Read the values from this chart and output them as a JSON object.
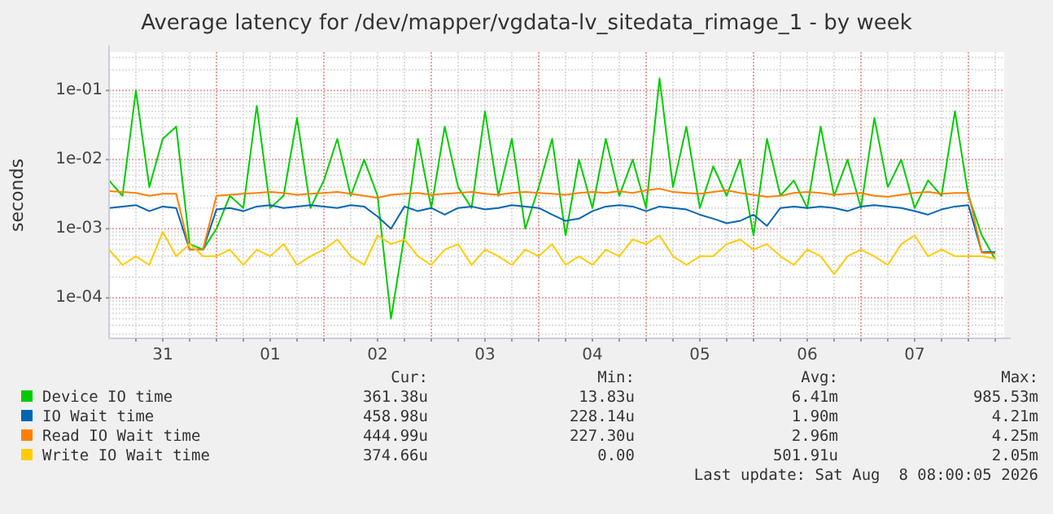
{
  "chart_data": {
    "type": "line",
    "title": "Average latency for /dev/mapper/vgdata-lv_sitedata_rimage_1 - by week",
    "ylabel": "seconds",
    "log": "y",
    "grid": true,
    "legend": "bottom",
    "x": [
      "2026-07-31T00:00",
      "2026-07-31T03:00",
      "2026-07-31T06:00",
      "2026-07-31T09:00",
      "2026-07-31T12:00",
      "2026-07-31T15:00",
      "2026-07-31T18:00",
      "2026-07-31T21:00",
      "2026-08-01T00:00",
      "2026-08-01T03:00",
      "2026-08-01T06:00",
      "2026-08-01T09:00",
      "2026-08-01T12:00",
      "2026-08-01T15:00",
      "2026-08-01T18:00",
      "2026-08-01T21:00",
      "2026-08-02T00:00",
      "2026-08-02T03:00",
      "2026-08-02T06:00",
      "2026-08-02T09:00",
      "2026-08-02T12:00",
      "2026-08-02T15:00",
      "2026-08-02T18:00",
      "2026-08-02T21:00",
      "2026-08-03T00:00",
      "2026-08-03T03:00",
      "2026-08-03T06:00",
      "2026-08-03T09:00",
      "2026-08-03T12:00",
      "2026-08-03T15:00",
      "2026-08-03T18:00",
      "2026-08-03T21:00",
      "2026-08-04T00:00",
      "2026-08-04T03:00",
      "2026-08-04T06:00",
      "2026-08-04T09:00",
      "2026-08-04T12:00",
      "2026-08-04T15:00",
      "2026-08-04T18:00",
      "2026-08-04T21:00",
      "2026-08-05T00:00",
      "2026-08-05T03:00",
      "2026-08-05T06:00",
      "2026-08-05T09:00",
      "2026-08-05T12:00",
      "2026-08-05T15:00",
      "2026-08-05T18:00",
      "2026-08-05T21:00",
      "2026-08-06T00:00",
      "2026-08-06T03:00",
      "2026-08-06T06:00",
      "2026-08-06T09:00",
      "2026-08-06T12:00",
      "2026-08-06T15:00",
      "2026-08-06T18:00",
      "2026-08-06T21:00",
      "2026-08-07T00:00",
      "2026-08-07T03:00",
      "2026-08-07T06:00",
      "2026-08-07T09:00",
      "2026-08-07T12:00",
      "2026-08-07T15:00",
      "2026-08-07T18:00",
      "2026-08-07T21:00",
      "2026-08-08T00:00",
      "2026-08-08T03:00",
      "2026-08-08T06:00"
    ],
    "xlim": [
      "2026-07-31T00:00",
      "2026-08-08T08:00"
    ],
    "xticks": [
      {
        "value": "2026-07-31T06:00",
        "label": null
      },
      {
        "value": "2026-07-31T12:00",
        "label": "31"
      },
      {
        "value": "2026-07-31T18:00",
        "label": null
      },
      {
        "value": "2026-08-01T00:00",
        "label": null
      },
      {
        "value": "2026-08-01T06:00",
        "label": null
      },
      {
        "value": "2026-08-01T12:00",
        "label": "01"
      },
      {
        "value": "2026-08-01T18:00",
        "label": null
      },
      {
        "value": "2026-08-02T00:00",
        "label": null
      },
      {
        "value": "2026-08-02T06:00",
        "label": null
      },
      {
        "value": "2026-08-02T12:00",
        "label": "02"
      },
      {
        "value": "2026-08-02T18:00",
        "label": null
      },
      {
        "value": "2026-08-03T00:00",
        "label": null
      },
      {
        "value": "2026-08-03T06:00",
        "label": null
      },
      {
        "value": "2026-08-03T12:00",
        "label": "03"
      },
      {
        "value": "2026-08-03T18:00",
        "label": null
      },
      {
        "value": "2026-08-04T00:00",
        "label": null
      },
      {
        "value": "2026-08-04T06:00",
        "label": null
      },
      {
        "value": "2026-08-04T12:00",
        "label": "04"
      },
      {
        "value": "2026-08-04T18:00",
        "label": null
      },
      {
        "value": "2026-08-05T00:00",
        "label": null
      },
      {
        "value": "2026-08-05T06:00",
        "label": null
      },
      {
        "value": "2026-08-05T12:00",
        "label": "05"
      },
      {
        "value": "2026-08-05T18:00",
        "label": null
      },
      {
        "value": "2026-08-06T00:00",
        "label": null
      },
      {
        "value": "2026-08-06T06:00",
        "label": null
      },
      {
        "value": "2026-08-06T12:00",
        "label": "06"
      },
      {
        "value": "2026-08-06T18:00",
        "label": null
      },
      {
        "value": "2026-08-07T00:00",
        "label": null
      },
      {
        "value": "2026-08-07T06:00",
        "label": null
      },
      {
        "value": "2026-08-07T12:00",
        "label": "07"
      },
      {
        "value": "2026-08-07T18:00",
        "label": null
      },
      {
        "value": "2026-08-08T00:00",
        "label": null
      },
      {
        "value": "2026-08-08T06:00",
        "label": null
      }
    ],
    "ylim": [
      2.6e-05,
      0.36
    ],
    "yticks": [
      {
        "value": 0.0001,
        "label": "1e-04"
      },
      {
        "value": 0.001,
        "label": "1e-03"
      },
      {
        "value": 0.01,
        "label": "1e-02"
      },
      {
        "value": 0.1,
        "label": "1e-01"
      }
    ],
    "series": [
      {
        "name": "Device IO time",
        "color": "#00cc00",
        "values": [
          0.005,
          0.003,
          0.1,
          0.004,
          0.02,
          0.03,
          0.0006,
          0.0005,
          0.001,
          0.003,
          0.002,
          0.06,
          0.002,
          0.003,
          0.04,
          0.002,
          0.005,
          0.02,
          0.003,
          0.01,
          0.003,
          5e-05,
          0.0008,
          0.02,
          0.002,
          0.03,
          0.004,
          0.002,
          0.05,
          0.003,
          0.02,
          0.001,
          0.004,
          0.02,
          0.0008,
          0.01,
          0.002,
          0.02,
          0.003,
          0.01,
          0.002,
          0.15,
          0.004,
          0.03,
          0.002,
          0.008,
          0.003,
          0.01,
          0.0008,
          0.02,
          0.003,
          0.005,
          0.002,
          0.03,
          0.003,
          0.01,
          0.002,
          0.04,
          0.004,
          0.01,
          0.002,
          0.005,
          0.003,
          0.05,
          0.003,
          0.0008,
          0.00036
        ]
      },
      {
        "name": "IO Wait time",
        "color": "#0066b3",
        "values": [
          0.002,
          0.0021,
          0.0022,
          0.0018,
          0.0021,
          0.002,
          0.0005,
          0.0005,
          0.0019,
          0.002,
          0.0018,
          0.0021,
          0.0022,
          0.002,
          0.0021,
          0.0022,
          0.0021,
          0.002,
          0.0022,
          0.0021,
          0.0015,
          0.001,
          0.0021,
          0.0018,
          0.002,
          0.0016,
          0.002,
          0.0021,
          0.0019,
          0.002,
          0.0022,
          0.0021,
          0.002,
          0.0016,
          0.0013,
          0.0014,
          0.0018,
          0.0021,
          0.0022,
          0.0021,
          0.0018,
          0.0021,
          0.002,
          0.0019,
          0.0016,
          0.0014,
          0.0012,
          0.0013,
          0.0016,
          0.0011,
          0.002,
          0.0021,
          0.002,
          0.0021,
          0.002,
          0.0018,
          0.0021,
          0.0022,
          0.0021,
          0.002,
          0.0018,
          0.0016,
          0.0019,
          0.0021,
          0.0022,
          0.00046,
          0.00046
        ]
      },
      {
        "name": "Read IO Wait time",
        "color": "#ff8000",
        "values": [
          0.0035,
          0.0034,
          0.0033,
          0.003,
          0.0032,
          0.0032,
          0.0005,
          0.0005,
          0.003,
          0.0031,
          0.0032,
          0.0033,
          0.0034,
          0.0033,
          0.0031,
          0.0032,
          0.0033,
          0.0034,
          0.0032,
          0.003,
          0.0028,
          0.0031,
          0.0032,
          0.0033,
          0.0031,
          0.0032,
          0.0033,
          0.0034,
          0.0032,
          0.0031,
          0.0033,
          0.0034,
          0.0033,
          0.0032,
          0.0031,
          0.0033,
          0.0034,
          0.0033,
          0.0035,
          0.0033,
          0.0036,
          0.0038,
          0.0034,
          0.0033,
          0.0032,
          0.0034,
          0.0036,
          0.0033,
          0.0031,
          0.0029,
          0.003,
          0.0033,
          0.0034,
          0.0033,
          0.0031,
          0.0032,
          0.0033,
          0.003,
          0.0029,
          0.0031,
          0.0033,
          0.0034,
          0.0032,
          0.0033,
          0.0033,
          0.00045,
          0.00044
        ]
      },
      {
        "name": "Write IO Wait time",
        "color": "#ffcc00",
        "values": [
          0.0005,
          0.0003,
          0.0004,
          0.0003,
          0.0009,
          0.0004,
          0.0006,
          0.0004,
          0.0004,
          0.0005,
          0.0003,
          0.0005,
          0.0004,
          0.0006,
          0.0003,
          0.0004,
          0.0005,
          0.0007,
          0.0004,
          0.0003,
          0.0008,
          0.0006,
          0.0007,
          0.0004,
          0.0003,
          0.0005,
          0.0006,
          0.0003,
          0.0005,
          0.0004,
          0.0003,
          0.0005,
          0.0004,
          0.0006,
          0.0003,
          0.0004,
          0.0003,
          0.0005,
          0.0004,
          0.0007,
          0.0006,
          0.0008,
          0.0004,
          0.0003,
          0.0004,
          0.0004,
          0.0006,
          0.0007,
          0.0005,
          0.0006,
          0.0004,
          0.0003,
          0.0005,
          0.0004,
          0.00022,
          0.0004,
          0.0005,
          0.0004,
          0.0003,
          0.0006,
          0.0008,
          0.0004,
          0.0005,
          0.0004,
          0.0004,
          0.0004,
          0.00037
        ]
      }
    ],
    "annotations": [
      "Cur:",
      "Min:",
      "Avg:",
      "Max:",
      "361.38u",
      "13.83u",
      "6.41m",
      "985.53m",
      "458.98u",
      "228.14u",
      "1.90m",
      "4.21m",
      "444.99u",
      "227.30u",
      "2.96m",
      "4.25m",
      "374.66u",
      "0.00",
      "501.91u",
      "2.05m",
      "Last update: Sat Aug  8 08:00:05 2026"
    ]
  }
}
